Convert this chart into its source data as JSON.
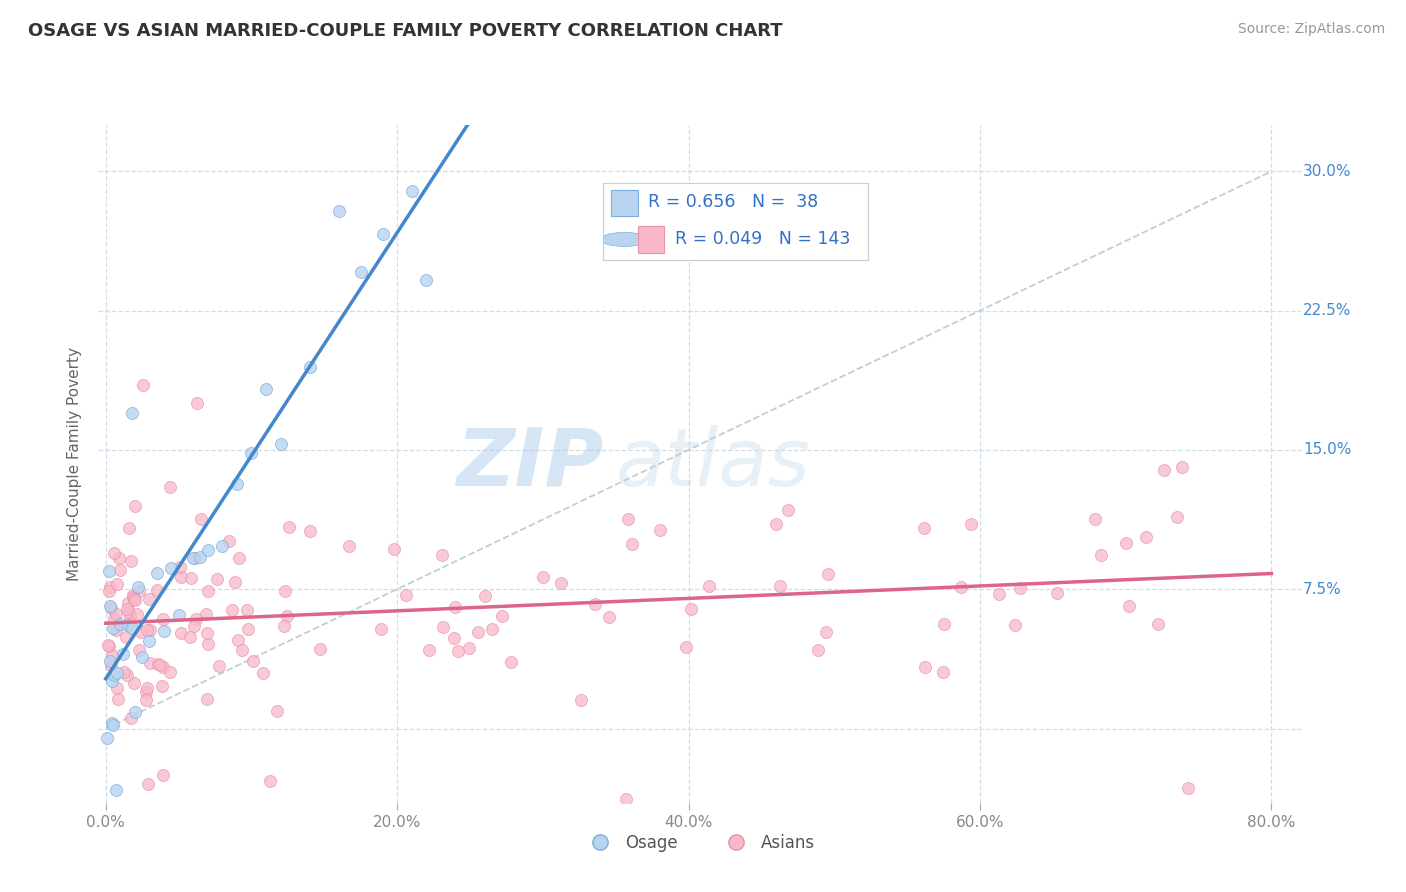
{
  "title": "OSAGE VS ASIAN MARRIED-COUPLE FAMILY POVERTY CORRELATION CHART",
  "source": "Source: ZipAtlas.com",
  "ylabel": "Married-Couple Family Poverty",
  "xlim": [
    -0.005,
    0.82
  ],
  "ylim": [
    -0.04,
    0.325
  ],
  "xticks": [
    0.0,
    0.2,
    0.4,
    0.6,
    0.8
  ],
  "xticklabels": [
    "0.0%",
    "20.0%",
    "40.0%",
    "60.0%",
    "80.0%"
  ],
  "yticks": [
    0.0,
    0.075,
    0.15,
    0.225,
    0.3
  ],
  "yticklabels": [
    "",
    "7.5%",
    "15.0%",
    "22.5%",
    "30.0%"
  ],
  "osage_R": 0.656,
  "osage_N": 38,
  "asian_R": 0.049,
  "asian_N": 143,
  "osage_fill_color": "#b8d4f0",
  "asian_fill_color": "#f8b8c8",
  "osage_edge_color": "#7aaedd",
  "asian_edge_color": "#e890a8",
  "osage_line_color": "#4488cc",
  "asian_line_color": "#dd6688",
  "ref_line_color": "#b8c8d8",
  "background_color": "#ffffff",
  "grid_color": "#d0dce8",
  "ytick_color": "#4488cc",
  "xtick_color": "#888888",
  "watermark_zip": "ZIP",
  "watermark_atlas": "atlas",
  "legend_border_color": "#cccccc"
}
